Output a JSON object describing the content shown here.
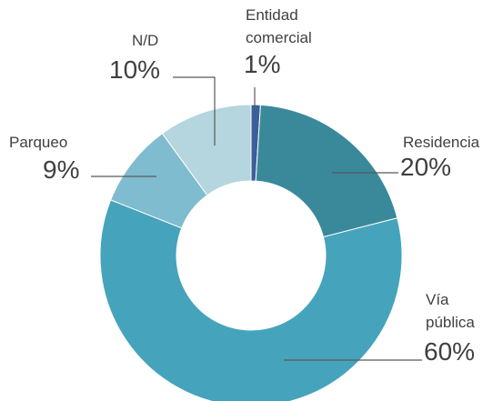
{
  "chart_data": {
    "type": "donut",
    "categories": [
      "Entidad comercial",
      "Residencia",
      "Vía pública",
      "Parqueo",
      "N/D"
    ],
    "values": [
      1,
      20,
      60,
      9,
      10
    ],
    "value_labels": [
      "1%",
      "20%",
      "60%",
      "9%",
      "10%"
    ],
    "colors": [
      "#3b5f99",
      "#3a899b",
      "#46a3bc",
      "#80bccf",
      "#b5d5df"
    ]
  }
}
